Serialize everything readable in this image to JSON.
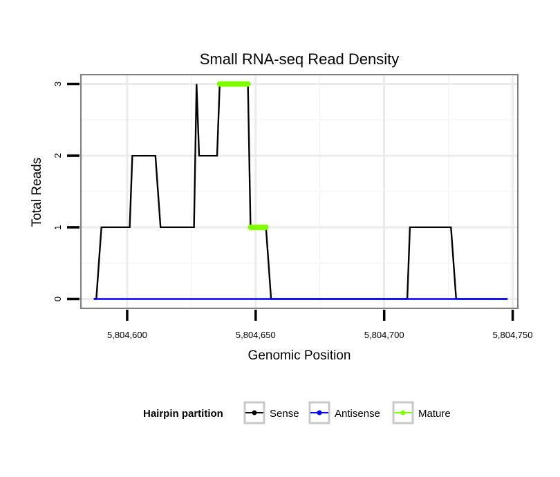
{
  "chart_data": {
    "type": "line",
    "title": "Small RNA-seq Read Density",
    "xlabel": "Genomic Position",
    "ylabel": "Total Reads",
    "xlim": [
      5804582,
      5804752
    ],
    "ylim": [
      -0.13,
      3.13
    ],
    "x_ticks": [
      5804600,
      5804650,
      5804700,
      5804750
    ],
    "x_tick_labels": [
      "5,804,600",
      "5,804,650",
      "5,804,700",
      "5,804,750"
    ],
    "y_ticks": [
      0,
      1,
      2,
      3
    ],
    "y_tick_labels": [
      "0",
      "1",
      "2",
      "3"
    ],
    "grid": true,
    "legend": {
      "title": "Hairpin partition",
      "position": "bottom",
      "entries": [
        {
          "label": "Sense",
          "color": "#000000"
        },
        {
          "label": "Antisense",
          "color": "#0000ff"
        },
        {
          "label": "Mature",
          "color": "#7fff00"
        }
      ]
    },
    "series": [
      {
        "name": "Sense",
        "color": "#000000",
        "x": [
          5804587,
          5804588,
          5804590,
          5804601,
          5804602,
          5804611,
          5804613,
          5804626,
          5804627,
          5804628,
          5804635,
          5804636,
          5804647,
          5804648,
          5804650,
          5804654,
          5804656,
          5804709,
          5804710,
          5804726,
          5804728,
          5804748
        ],
        "y": [
          0,
          0,
          1,
          1,
          2,
          2,
          1,
          1,
          3,
          2,
          2,
          3,
          3,
          1,
          1,
          1,
          0,
          0,
          1,
          1,
          0,
          0
        ]
      },
      {
        "name": "Antisense",
        "color": "#0000ff",
        "x": [
          5804587,
          5804748
        ],
        "y": [
          0,
          0
        ]
      },
      {
        "name": "Mature",
        "color": "#7fff00",
        "segments": [
          {
            "x": [
              5804636,
              5804647
            ],
            "y": 3
          },
          {
            "x": [
              5804648,
              5804654
            ],
            "y": 1
          }
        ]
      }
    ]
  }
}
